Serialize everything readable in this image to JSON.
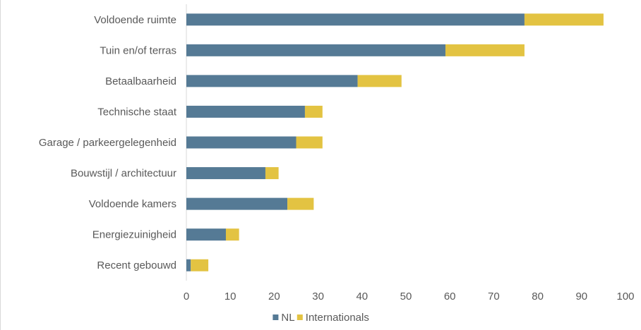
{
  "chart_data": {
    "type": "bar",
    "orientation": "horizontal",
    "stacked": true,
    "categories": [
      "Voldoende ruimte",
      "Tuin en/of terras",
      "Betaalbaarheid",
      "Technische staat",
      "Garage / parkeergelegenheid",
      "Bouwstijl / architectuur",
      "Voldoende kamers",
      "Energiezuinigheid",
      "Recent gebouwd"
    ],
    "series": [
      {
        "name": "NL",
        "color": "#557a95",
        "values": [
          77,
          59,
          39,
          27,
          25,
          18,
          23,
          9,
          1
        ]
      },
      {
        "name": "Internationals",
        "color": "#e3c342",
        "values": [
          18,
          18,
          10,
          4,
          6,
          3,
          6,
          3,
          4
        ]
      }
    ],
    "xlim": [
      0,
      100
    ],
    "xticks": [
      0,
      10,
      20,
      30,
      40,
      50,
      60,
      70,
      80,
      90,
      100
    ],
    "grid": false,
    "legend": "bottom",
    "title": "",
    "xlabel": "",
    "ylabel": ""
  }
}
